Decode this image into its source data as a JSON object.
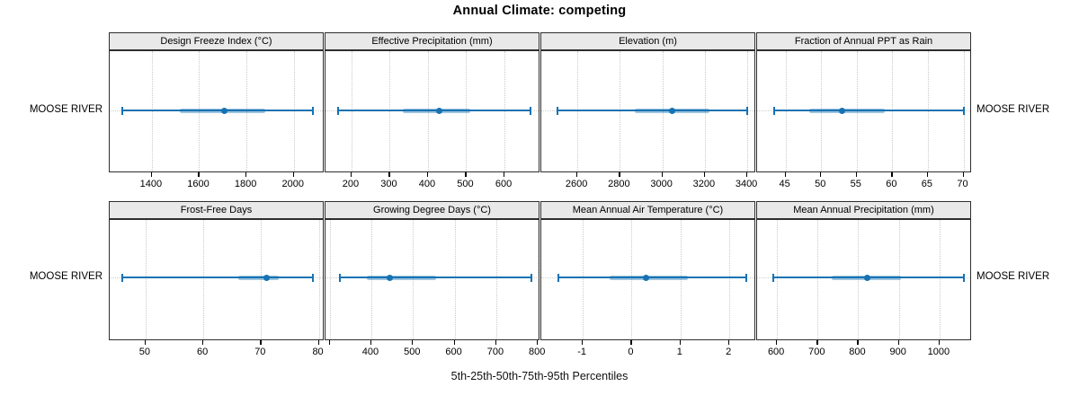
{
  "title": "Annual Climate: competing",
  "caption": "5th-25th-50th-75th-95th Percentiles",
  "row_labels": {
    "left_top": "MOOSE RIVER",
    "left_bottom": "MOOSE RIVER",
    "right_top": "MOOSE RIVER",
    "right_bottom": "MOOSE RIVER"
  },
  "colors": {
    "line": "#1772B2",
    "band": "rgba(23,114,178,0.42)",
    "grid": "#c9c9c9",
    "strip_bg": "#e9e9e9",
    "panel_border": "#2e2e2e"
  },
  "chart_data": {
    "type": "horizontal-percentile-interval",
    "group": "MOOSE RIVER",
    "legend": "5th-25th-50th-75th-95th Percentiles",
    "layout": "2 rows x 4 columns",
    "panels": [
      {
        "title": "Design Freeze Index (°C)",
        "row": 0,
        "col": 0,
        "xlim": [
          1222,
          2130
        ],
        "tick_values": [
          1400,
          1600,
          1800,
          2000
        ],
        "tick_labels": [
          "1400",
          "1600",
          "1800",
          "2000"
        ],
        "percentiles": {
          "p5": 1275,
          "p25": 1520,
          "p50": 1705,
          "p75": 1880,
          "p95": 2080
        }
      },
      {
        "title": "Effective Precipitation (mm)",
        "row": 0,
        "col": 1,
        "xlim": [
          132,
          694
        ],
        "tick_values": [
          200,
          300,
          400,
          500,
          600
        ],
        "tick_labels": [
          "200",
          "300",
          "400",
          "500",
          "600"
        ],
        "percentiles": {
          "p5": 165,
          "p25": 335,
          "p50": 430,
          "p75": 510,
          "p95": 668
        }
      },
      {
        "title": "Elevation (m)",
        "row": 0,
        "col": 2,
        "xlim": [
          2430,
          3442
        ],
        "tick_values": [
          2600,
          2800,
          3000,
          3200,
          3400
        ],
        "tick_labels": [
          "2600",
          "2800",
          "3000",
          "3200",
          "3400"
        ],
        "percentiles": {
          "p5": 2505,
          "p25": 2870,
          "p50": 3045,
          "p75": 3220,
          "p95": 3400
        }
      },
      {
        "title": "Fraction of Annual PPT as Rain",
        "row": 0,
        "col": 3,
        "xlim": [
          41,
          71.2
        ],
        "tick_values": [
          45,
          50,
          55,
          60,
          65,
          70
        ],
        "tick_labels": [
          "45",
          "50",
          "55",
          "60",
          "65",
          "70"
        ],
        "percentiles": {
          "p5": 43.4,
          "p25": 48.3,
          "p50": 53,
          "p75": 59,
          "p95": 70
        }
      },
      {
        "title": "Frost-Free Days",
        "row": 1,
        "col": 0,
        "xlim": [
          43.8,
          81
        ],
        "tick_values": [
          50,
          60,
          70,
          80
        ],
        "tick_labels": [
          "50",
          "60",
          "70",
          "80"
        ],
        "percentiles": {
          "p5": 46,
          "p25": 66,
          "p50": 71,
          "p75": 73,
          "p95": 79
        }
      },
      {
        "title": "Growing Degree Days (°C)",
        "row": 1,
        "col": 1,
        "xlim": [
          290,
          806
        ],
        "tick_values": [
          300,
          400,
          500,
          600,
          700,
          800
        ],
        "tick_labels": [
          "",
          "400",
          "500",
          "600",
          "700",
          "800"
        ],
        "percentiles": {
          "p5": 325,
          "p25": 390,
          "p50": 445,
          "p75": 555,
          "p95": 785
        }
      },
      {
        "title": "Mean Annual Air Temperature (°C)",
        "row": 1,
        "col": 2,
        "xlim": [
          -1.85,
          2.55
        ],
        "tick_values": [
          -1,
          0,
          1,
          2
        ],
        "tick_labels": [
          "-1",
          "0",
          "1",
          "2"
        ],
        "percentiles": {
          "p5": -1.5,
          "p25": -0.45,
          "p50": 0.3,
          "p75": 1.15,
          "p95": 2.35
        }
      },
      {
        "title": "Mean Annual Precipitation (mm)",
        "row": 1,
        "col": 3,
        "xlim": [
          551,
          1080
        ],
        "tick_values": [
          600,
          700,
          800,
          900,
          1000
        ],
        "tick_labels": [
          "600",
          "700",
          "800",
          "900",
          "1000"
        ],
        "percentiles": {
          "p5": 590,
          "p25": 735,
          "p50": 822,
          "p75": 905,
          "p95": 1060
        }
      }
    ]
  }
}
